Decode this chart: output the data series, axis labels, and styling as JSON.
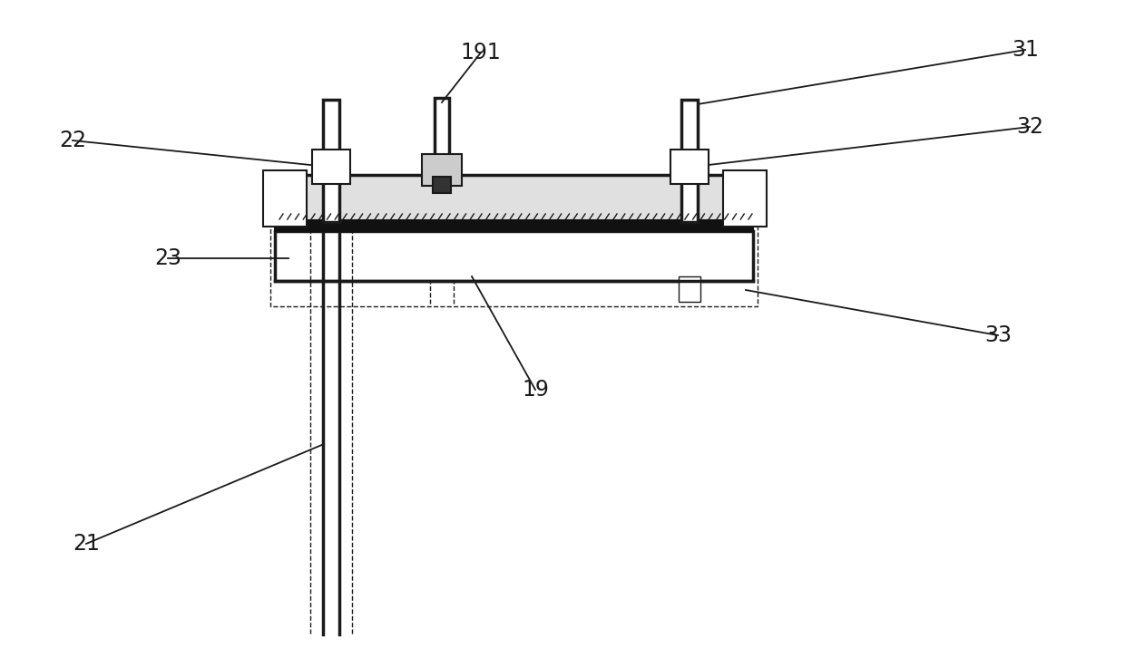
{
  "background_color": "#ffffff",
  "line_color": "#1a1a1a",
  "figsize": [
    12.4,
    7.36
  ],
  "dpi": 100,
  "label_fontsize": 17
}
